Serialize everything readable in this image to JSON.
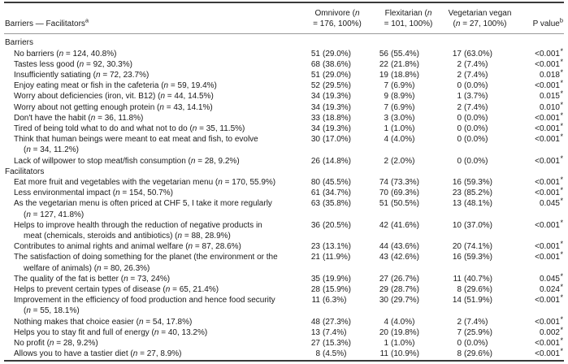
{
  "page": {
    "background": "#ffffff",
    "text_color": "#1a1a1a",
    "rule_dark": "#3a3a3a",
    "rule_light": "#9a9a9a"
  },
  "table": {
    "header": {
      "label": {
        "text": "Barriers — Facilitators",
        "sup": "a"
      },
      "columns": [
        {
          "name": "omnivore",
          "lines": [
            "Omnivore (n",
            "= 176, 100%)"
          ]
        },
        {
          "name": "flexitarian",
          "lines": [
            "Flexitarian (n",
            "= 101, 100%)"
          ]
        },
        {
          "name": "vegetarian-vegan",
          "lines": [
            "Vegetarian vegan",
            "(n = 27, 100%)"
          ]
        }
      ],
      "p_value": {
        "text": "P value",
        "sup": "b"
      }
    },
    "sections": [
      {
        "title": "Barriers",
        "rows": [
          {
            "label": "No barriers (n = 124, 40.8%)",
            "values": [
              [
                "51",
                "(29.0%)"
              ],
              [
                "56",
                "(55.4%)"
              ],
              [
                "17",
                "(63.0%)"
              ]
            ],
            "p": "<0.001",
            "sig": "*"
          },
          {
            "label": "Tastes less good (n = 92, 30.3%)",
            "values": [
              [
                "68",
                "(38.6%)"
              ],
              [
                "22",
                "(21.8%)"
              ],
              [
                "2",
                "(7.4%)"
              ]
            ],
            "p": "<0.001",
            "sig": "*"
          },
          {
            "label": "Insufficiently satiating (n = 72, 23.7%)",
            "values": [
              [
                "51",
                "(29.0%)"
              ],
              [
                "19",
                "(18.8%)"
              ],
              [
                "2",
                "(7.4%)"
              ]
            ],
            "p": "0.018",
            "sig": "*"
          },
          {
            "label": "Enjoy eating meat or fish in the cafeteria (n = 59, 19.4%)",
            "values": [
              [
                "52",
                "(29.5%)"
              ],
              [
                "7",
                "(6.9%)"
              ],
              [
                "0",
                "(0.0%)"
              ]
            ],
            "p": "<0.001",
            "sig": "*"
          },
          {
            "label": "Worry about deficiencies (iron, vit. B12) (n = 44, 14.5%)",
            "values": [
              [
                "34",
                "(19.3%)"
              ],
              [
                "9",
                "(8.9%)"
              ],
              [
                "1",
                "(3.7%)"
              ]
            ],
            "p": "0.015",
            "sig": "*"
          },
          {
            "label": "Worry about not getting enough protein (n = 43, 14.1%)",
            "values": [
              [
                "34",
                "(19.3%)"
              ],
              [
                "7",
                "(6.9%)"
              ],
              [
                "2",
                "(7.4%)"
              ]
            ],
            "p": "0.010",
            "sig": "*"
          },
          {
            "label": "Don't have the habit (n = 36, 11.8%)",
            "values": [
              [
                "33",
                "(18.8%)"
              ],
              [
                "3",
                "(3.0%)"
              ],
              [
                "0",
                "(0.0%)"
              ]
            ],
            "p": "<0.001",
            "sig": "*"
          },
          {
            "label": "Tired of being told what to do and what not to do (n = 35, 11.5%)",
            "values": [
              [
                "34",
                "(19.3%)"
              ],
              [
                "1",
                "(1.0%)"
              ],
              [
                "0",
                "(0.0%)"
              ]
            ],
            "p": "<0.001",
            "sig": "*"
          },
          {
            "label": [
              "Think that human beings were meant to eat meat and fish, to evolve",
              "(n = 34, 11.2%)"
            ],
            "values": [
              [
                "30",
                "(17.0%)"
              ],
              [
                "4",
                "(4.0%)"
              ],
              [
                "0",
                "(0.0%)"
              ]
            ],
            "p": "<0.001",
            "sig": "*"
          },
          {
            "label": "Lack of willpower to stop meat/fish consumption (n = 28, 9.2%)",
            "values": [
              [
                "26",
                "(14.8%)"
              ],
              [
                "2",
                "(2.0%)"
              ],
              [
                "0",
                "(0.0%)"
              ]
            ],
            "p": "<0.001",
            "sig": "*"
          }
        ]
      },
      {
        "title": "Facilitators",
        "rows": [
          {
            "label": "Eat more fruit and vegetables with the vegetarian menu (n = 170, 55.9%)",
            "values": [
              [
                "80",
                "(45.5%)"
              ],
              [
                "74",
                "(73.3%)"
              ],
              [
                "16",
                "(59.3%)"
              ]
            ],
            "p": "<0.001",
            "sig": "*"
          },
          {
            "label": "Less environmental impact (n = 154, 50.7%)",
            "values": [
              [
                "61",
                "(34.7%)"
              ],
              [
                "70",
                "(69.3%)"
              ],
              [
                "23",
                "(85.2%)"
              ]
            ],
            "p": "<0.001",
            "sig": "*"
          },
          {
            "label": [
              "As the vegetarian menu is often priced at CHF 5, I take it more regularly",
              "(n = 127, 41.8%)"
            ],
            "values": [
              [
                "63",
                "(35.8%)"
              ],
              [
                "51",
                "(50.5%)"
              ],
              [
                "13",
                "(48.1%)"
              ]
            ],
            "p": "0.045",
            "sig": "*"
          },
          {
            "label": [
              "Helps to improve health through the reduction of negative products in",
              "meat (chemicals, steroids and antibiotics) (n = 88, 28.9%)"
            ],
            "values": [
              [
                "36",
                "(20.5%)"
              ],
              [
                "42",
                "(41.6%)"
              ],
              [
                "10",
                "(37.0%)"
              ]
            ],
            "p": "<0.001",
            "sig": "*"
          },
          {
            "label": "Contributes to animal rights and animal welfare (n = 87, 28.6%)",
            "values": [
              [
                "23",
                "(13.1%)"
              ],
              [
                "44",
                "(43.6%)"
              ],
              [
                "20",
                "(74.1%)"
              ]
            ],
            "p": "<0.001",
            "sig": "*"
          },
          {
            "label": [
              "The satisfaction of doing something for the planet (the environment or the",
              "welfare of animals) (n = 80, 26.3%)"
            ],
            "values": [
              [
                "21",
                "(11.9%)"
              ],
              [
                "43",
                "(42.6%)"
              ],
              [
                "16",
                "(59.3%)"
              ]
            ],
            "p": "<0.001",
            "sig": "*"
          },
          {
            "label": "The quality of the fat is better (n = 73, 24%)",
            "values": [
              [
                "35",
                "(19.9%)"
              ],
              [
                "27",
                "(26.7%)"
              ],
              [
                "11",
                "(40.7%)"
              ]
            ],
            "p": "0.045",
            "sig": "*"
          },
          {
            "label": "Helps to prevent certain types of disease (n = 65, 21.4%)",
            "values": [
              [
                "28",
                "(15.9%)"
              ],
              [
                "29",
                "(28.7%)"
              ],
              [
                "8",
                "(29.6%)"
              ]
            ],
            "p": "0.024",
            "sig": "*"
          },
          {
            "label": [
              "Improvement in the efficiency of food production and hence food security",
              "(n = 55, 18.1%)"
            ],
            "values": [
              [
                "11",
                "(6.3%)"
              ],
              [
                "30",
                "(29.7%)"
              ],
              [
                "14",
                "(51.9%)"
              ]
            ],
            "p": "<0.001",
            "sig": "*"
          },
          {
            "label": "Nothing makes that choice easier (n = 54, 17.8%)",
            "values": [
              [
                "48",
                "(27.3%)"
              ],
              [
                "4",
                "(4.0%)"
              ],
              [
                "2",
                "(7.4%)"
              ]
            ],
            "p": "<0.001",
            "sig": "*"
          },
          {
            "label": "Helps you to stay fit and full of energy (n = 40, 13.2%)",
            "values": [
              [
                "13",
                "(7.4%)"
              ],
              [
                "20",
                "(19.8%)"
              ],
              [
                "7",
                "(25.9%)"
              ]
            ],
            "p": "0.002",
            "sig": "*"
          },
          {
            "label": "No profit (n = 28, 9.2%)",
            "values": [
              [
                "27",
                "(15.3%)"
              ],
              [
                "1",
                "(1.0%)"
              ],
              [
                "0",
                "(0.0%)"
              ]
            ],
            "p": "<0.001",
            "sig": "*"
          },
          {
            "label": "Allows you to have a tastier diet (n = 27, 8.9%)",
            "values": [
              [
                "8",
                "(4.5%)"
              ],
              [
                "11",
                "(10.9%)"
              ],
              [
                "8",
                "(29.6%)"
              ]
            ],
            "p": "<0.001",
            "sig": "*"
          }
        ]
      }
    ]
  }
}
